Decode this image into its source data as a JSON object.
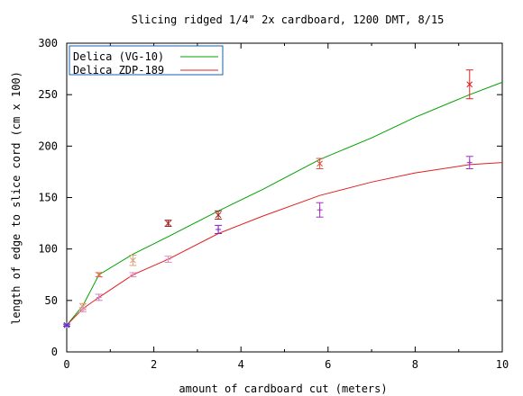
{
  "chart_data": {
    "type": "line",
    "title": "Slicing ridged 1/4\" 2x cardboard, 1200 DMT, 8/15",
    "xlabel": "amount of cardboard cut (meters)",
    "ylabel": "length of edge to slice cord (cm x 100)",
    "xlim": [
      0,
      10
    ],
    "ylim": [
      0,
      300
    ],
    "xticks": [
      "0",
      "2",
      "4",
      "6",
      "8",
      "10"
    ],
    "xtick_values": [
      0,
      2,
      4,
      6,
      8,
      10
    ],
    "yticks": [
      "0",
      "50",
      "100",
      "150",
      "200",
      "250",
      "300"
    ],
    "ytick_values": [
      0,
      50,
      100,
      150,
      200,
      250,
      300
    ],
    "grid": false,
    "legend_position": "top-left",
    "series": [
      {
        "name": "Delica (VG-10)",
        "color": "#00a000",
        "line": [
          [
            0,
            26
          ],
          [
            0.37,
            45
          ],
          [
            0.74,
            75
          ],
          [
            1.52,
            95
          ],
          [
            2.33,
            112
          ],
          [
            3.48,
            137
          ],
          [
            4.5,
            158
          ],
          [
            5.81,
            187
          ],
          [
            7.0,
            208
          ],
          [
            8.0,
            228
          ],
          [
            9.25,
            250
          ],
          [
            10,
            262
          ]
        ],
        "points": [
          {
            "x": 0,
            "y": 26,
            "err": 1,
            "color": "#3030c0"
          },
          {
            "x": 0.37,
            "y": 44,
            "err": 3,
            "color": "#e0a070"
          },
          {
            "x": 0.74,
            "y": 75,
            "err": 2,
            "color": "#e07050"
          },
          {
            "x": 1.52,
            "y": 89,
            "err": 5,
            "color": "#e0a070"
          },
          {
            "x": 2.33,
            "y": 125,
            "err": 3,
            "color": "#a02020"
          },
          {
            "x": 3.48,
            "y": 133,
            "err": 4,
            "color": "#a02020"
          },
          {
            "x": 5.81,
            "y": 183,
            "err": 5,
            "color": "#e05040"
          },
          {
            "x": 9.25,
            "y": 260,
            "err": 14,
            "color": "#e02020"
          }
        ]
      },
      {
        "name": "Delica ZDP-189",
        "color": "#e02020",
        "line": [
          [
            0,
            26
          ],
          [
            0.37,
            42
          ],
          [
            0.74,
            53
          ],
          [
            1.52,
            75
          ],
          [
            2.33,
            90
          ],
          [
            3.48,
            115
          ],
          [
            4.5,
            132
          ],
          [
            5.81,
            152
          ],
          [
            7.0,
            165
          ],
          [
            8.0,
            174
          ],
          [
            9.25,
            182
          ],
          [
            10,
            184
          ]
        ],
        "points": [
          {
            "x": 0,
            "y": 26,
            "err": 1,
            "color": "#7030c0"
          },
          {
            "x": 0.37,
            "y": 41,
            "err": 2,
            "color": "#e090c0"
          },
          {
            "x": 0.74,
            "y": 53,
            "err": 3,
            "color": "#d080c0"
          },
          {
            "x": 1.52,
            "y": 75,
            "err": 2,
            "color": "#e090c0"
          },
          {
            "x": 2.33,
            "y": 90,
            "err": 3,
            "color": "#e090c0"
          },
          {
            "x": 3.48,
            "y": 119,
            "err": 4,
            "color": "#8020c0"
          },
          {
            "x": 5.81,
            "y": 138,
            "err": 7,
            "color": "#a030c0"
          },
          {
            "x": 9.25,
            "y": 184,
            "err": 6,
            "color": "#a030c0"
          }
        ]
      }
    ]
  }
}
